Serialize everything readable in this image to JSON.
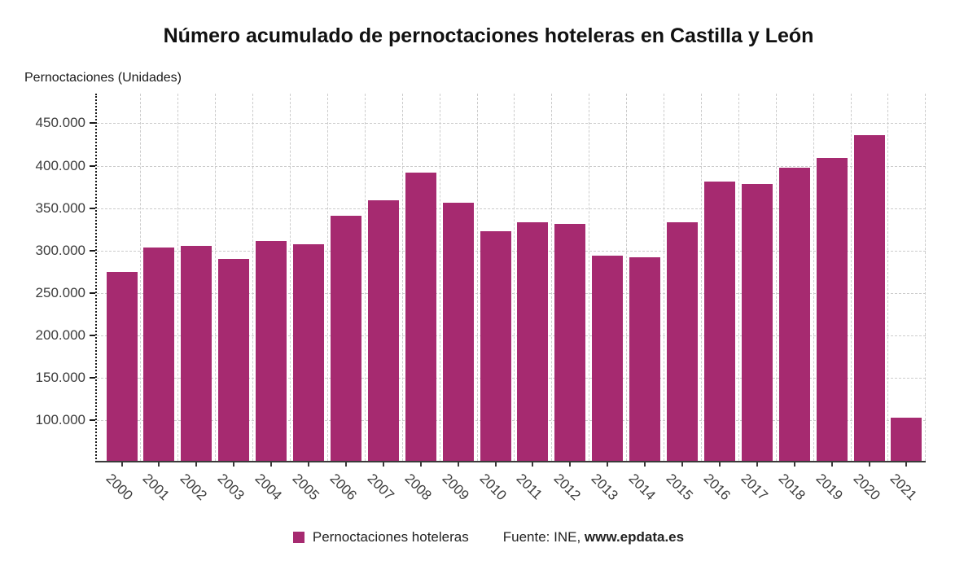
{
  "title": "Número acumulado de pernoctaciones hoteleras en Castilla y León",
  "y_axis_unit_label": "Pernoctaciones (Unidades)",
  "legend": {
    "series_label": "Pernoctaciones hoteleras",
    "source_prefix": "Fuente: INE, ",
    "source_site": "www.epdata.es"
  },
  "colors": {
    "bar": "#A62A70",
    "grid": "#CCCCCC",
    "axis": "#3A3A3A",
    "title_text": "#111111",
    "tick_text": "#3D3D3D"
  },
  "chart_data": {
    "type": "bar",
    "title": "Número acumulado de pernoctaciones hoteleras en Castilla y León",
    "xlabel": "",
    "ylabel": "Pernoctaciones (Unidades)",
    "legend_position": "bottom",
    "grid": true,
    "categories": [
      "2000",
      "2001",
      "2002",
      "2003",
      "2004",
      "2005",
      "2006",
      "2007",
      "2008",
      "2009",
      "2010",
      "2011",
      "2012",
      "2013",
      "2014",
      "2015",
      "2016",
      "2017",
      "2018",
      "2019",
      "2020",
      "2021"
    ],
    "series": [
      {
        "name": "Pernoctaciones hoteleras",
        "values": [
          275000,
          304000,
          305000,
          290000,
          311000,
          307000,
          341000,
          359000,
          392000,
          356000,
          323000,
          333000,
          331000,
          294000,
          292000,
          333000,
          381000,
          378000,
          398000,
          409000,
          436000,
          103000
        ]
      }
    ],
    "y_tick_values": [
      100000,
      150000,
      200000,
      250000,
      300000,
      350000,
      400000,
      450000
    ],
    "y_tick_labels": [
      "100.000",
      "150.000",
      "200.000",
      "250.000",
      "300.000",
      "350.000",
      "400.000",
      "450.000"
    ],
    "ylim": [
      52000,
      485000
    ]
  }
}
